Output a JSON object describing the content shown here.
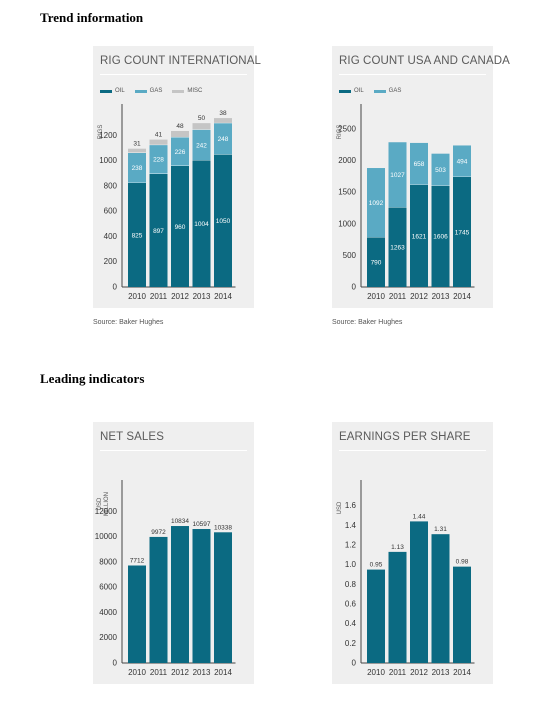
{
  "sections": {
    "trend": "Trend information",
    "leading": "Leading indicators"
  },
  "colors": {
    "oil": "#0b6a82",
    "gas": "#5aaac4",
    "misc": "#c5c5c5",
    "axis": "#444444"
  },
  "chart_data": [
    {
      "id": "intl",
      "type": "bar",
      "stacked": true,
      "title": "RIG COUNT INTERNATIONAL",
      "ylabel": "RIGS",
      "categories": [
        "2010",
        "2011",
        "2012",
        "2013",
        "2014"
      ],
      "series": [
        {
          "name": "OIL",
          "values": [
            825,
            897,
            960,
            1004,
            1050
          ]
        },
        {
          "name": "GAS",
          "values": [
            238,
            228,
            226,
            242,
            248
          ]
        },
        {
          "name": "MISC",
          "values": [
            31,
            41,
            48,
            50,
            38
          ]
        }
      ],
      "yticks": [
        0,
        200,
        400,
        600,
        800,
        1000,
        1200
      ],
      "ylim": [
        0,
        1400
      ],
      "source": "Source: Baker Hughes"
    },
    {
      "id": "usa",
      "type": "bar",
      "stacked": true,
      "title": "RIG COUNT USA AND CANADA",
      "ylabel": "RIGS",
      "categories": [
        "2010",
        "2011",
        "2012",
        "2013",
        "2014"
      ],
      "series": [
        {
          "name": "OIL",
          "values": [
            790,
            1263,
            1621,
            1606,
            1745
          ]
        },
        {
          "name": "GAS",
          "values": [
            1092,
            1027,
            658,
            503,
            494
          ]
        }
      ],
      "yticks": [
        0,
        500,
        1000,
        1500,
        2000,
        2500
      ],
      "ylim": [
        0,
        2800
      ],
      "source": "Source: Baker Hughes"
    },
    {
      "id": "sales",
      "type": "bar",
      "stacked": false,
      "title": "NET SALES",
      "ylabel": "USD MILLION",
      "categories": [
        "2010",
        "2011",
        "2012",
        "2013",
        "2014"
      ],
      "series": [
        {
          "values": [
            7712,
            9972,
            10834,
            10597,
            10338
          ]
        }
      ],
      "yticks": [
        0,
        2000,
        4000,
        6000,
        8000,
        10000,
        12000
      ],
      "ylim": [
        0,
        14000
      ],
      "source": ""
    },
    {
      "id": "eps",
      "type": "bar",
      "stacked": false,
      "title": "EARNINGS PER SHARE",
      "ylabel": "USD",
      "categories": [
        "2010",
        "2011",
        "2012",
        "2013",
        "2014"
      ],
      "series": [
        {
          "values": [
            0.95,
            1.13,
            1.44,
            1.31,
            0.98
          ],
          "labels": [
            "0.95",
            "1.13",
            "1.44",
            "1.31",
            "0.98"
          ]
        }
      ],
      "yticks": [
        0,
        0.2,
        0.4,
        0.6,
        0.8,
        1.0,
        1.2,
        1.4,
        1.6
      ],
      "yticklabels": [
        "0",
        "0.2",
        "0.4",
        "0.6",
        "0.8",
        "1.0",
        "1.2",
        "1.4",
        "1.6"
      ],
      "ylim": [
        0,
        1.8
      ],
      "source": ""
    }
  ]
}
